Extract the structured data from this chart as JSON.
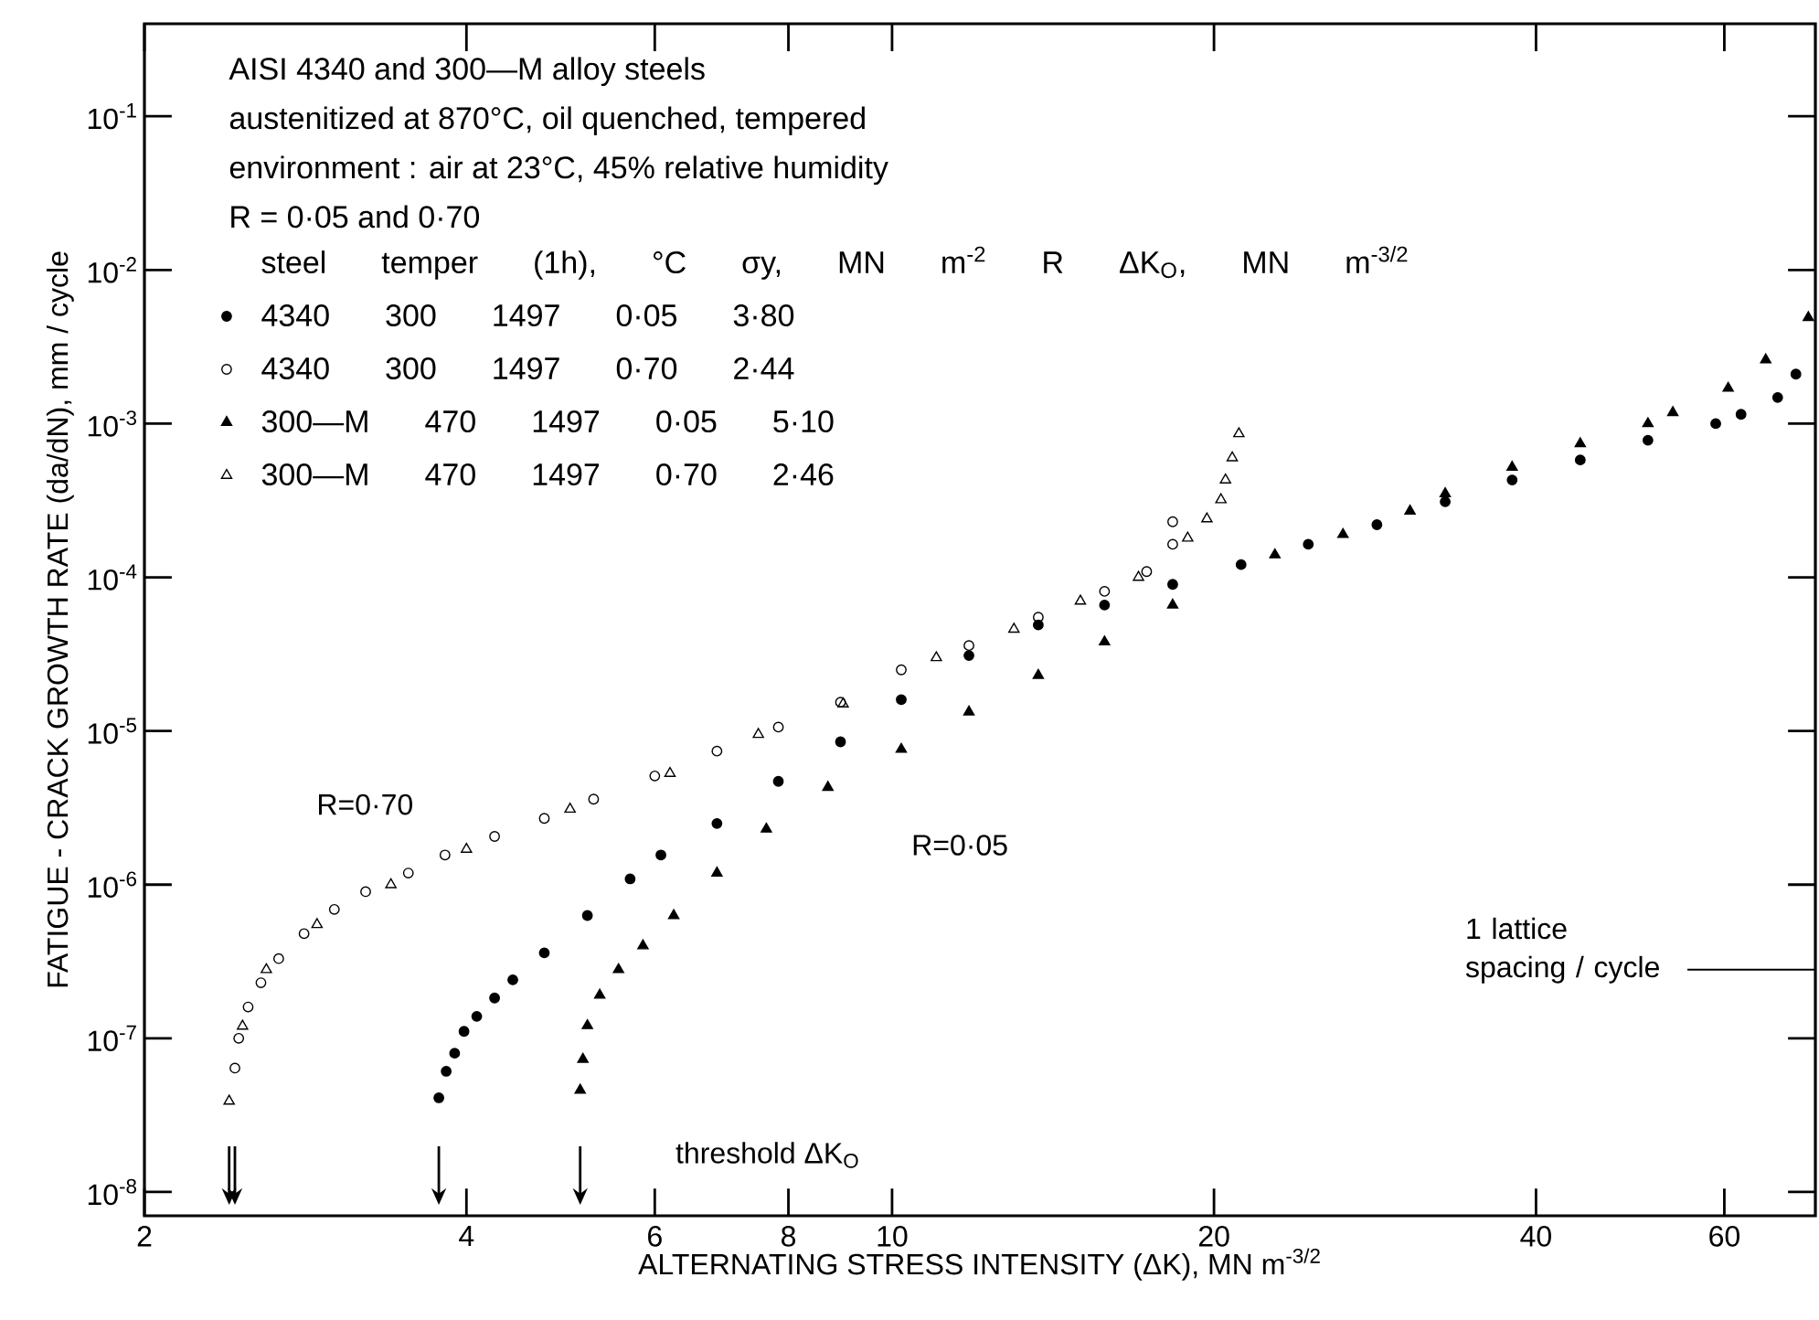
{
  "chart_data": {
    "type": "scatter",
    "xlabel": "ALTERNATING STRESS INTENSITY (ΔK), MN m$^{-3/2}$",
    "ylabel": "FATIGUE - CRACK GROWTH RATE (da/dN), mm / cycle",
    "log": "xy",
    "grid": false,
    "legend": "top left",
    "legend_title": "steel temper (1h), °C σy, MN m$^{-2}$ R ΔK$_{O}$, MN m$^{-3/2}$",
    "xlim": [
      2,
      73
    ],
    "ylim": [
      7e-09,
      0.4
    ],
    "xticks": [
      2,
      4,
      6,
      8,
      10,
      20,
      40,
      60
    ],
    "yticks": [
      {
        "value": 1e-08,
        "label": "10$^{-8}$"
      },
      {
        "value": 1e-07,
        "label": "10$^{-7}$"
      },
      {
        "value": 1e-06,
        "label": "10$^{-6}$"
      },
      {
        "value": 1e-05,
        "label": "10$^{-5}$"
      },
      {
        "value": 0.0001,
        "label": "10$^{-4}$"
      },
      {
        "value": 0.001,
        "label": "10$^{-3}$"
      },
      {
        "value": 0.01,
        "label": "10$^{-2}$"
      },
      {
        "value": 0.1,
        "label": "10$^{-1}$"
      }
    ],
    "series": [
      {
        "name": "4340 300 1497 0·05 3·80",
        "color": "#000000",
        "marker": "circle",
        "x": [
          3.77,
          3.83,
          3.9,
          3.98,
          4.09,
          4.25,
          4.42,
          4.73,
          5.19,
          5.69,
          6.08,
          6.86,
          7.83,
          8.95,
          10.2,
          11.8,
          13.7,
          15.8,
          18.3,
          21.2,
          24.5,
          28.4,
          32.9,
          38.0,
          44.0,
          50.9,
          58.9,
          62.2,
          67.3,
          70.0
        ],
        "values": [
          4.1e-08,
          6.1e-08,
          8e-08,
          1.11e-07,
          1.39e-07,
          1.83e-07,
          2.4e-07,
          3.6e-07,
          6.3e-07,
          1.09e-06,
          1.56e-06,
          2.5e-06,
          4.7e-06,
          8.5e-06,
          1.6e-05,
          3.1e-05,
          4.9e-05,
          6.6e-05,
          9e-05,
          0.000121,
          0.000164,
          0.00022,
          0.00031,
          0.00043,
          0.00058,
          0.00078,
          0.001,
          0.00115,
          0.00148,
          0.0021
        ]
      },
      {
        "name": "4340 300 1497 0·70 2·44",
        "color": "#000000",
        "marker": "circle",
        "x": [
          2.43,
          2.45,
          2.5,
          2.57,
          2.67,
          2.82,
          3.01,
          3.22,
          3.53,
          3.82,
          4.25,
          4.73,
          5.26,
          6.0,
          6.86,
          7.83,
          8.95,
          10.2,
          11.8,
          13.7,
          15.8,
          17.3,
          18.3,
          18.3
        ],
        "values": [
          6.4e-08,
          1e-07,
          1.6e-07,
          2.3e-07,
          3.3e-07,
          4.8e-07,
          6.9e-07,
          9e-07,
          1.19e-06,
          1.56e-06,
          2.06e-06,
          2.7e-06,
          3.6e-06,
          5.1e-06,
          7.4e-06,
          1.06e-05,
          1.54e-05,
          2.5e-05,
          3.6e-05,
          5.5e-05,
          8.1e-05,
          0.000109,
          0.000164,
          0.00023
        ]
      },
      {
        "name": "300—M 470 1497 0·05 5·10",
        "color": "#000000",
        "marker": "triangle",
        "x": [
          5.11,
          5.14,
          5.19,
          5.33,
          5.55,
          5.85,
          6.25,
          6.86,
          7.63,
          8.71,
          10.2,
          11.8,
          13.7,
          15.8,
          18.3,
          22.8,
          26.4,
          30.5,
          32.9,
          38.0,
          44.0,
          50.9,
          53.7,
          60.5,
          65.6,
          71.9
        ],
        "values": [
          4.6e-08,
          7.3e-08,
          1.21e-07,
          1.91e-07,
          2.8e-07,
          4e-07,
          6.3e-07,
          1.19e-06,
          2.3e-06,
          4.3e-06,
          7.6e-06,
          1.33e-05,
          2.3e-05,
          3.8e-05,
          6.6e-05,
          0.00014,
          0.00019,
          0.00027,
          0.00035,
          0.00052,
          0.00074,
          0.001,
          0.00118,
          0.0017,
          0.0026,
          0.0049
        ]
      },
      {
        "name": "300—M 470 1497 0·70 2·46",
        "color": "#000000",
        "marker": "triangle",
        "x": [
          2.4,
          2.47,
          2.6,
          2.9,
          3.4,
          4.0,
          5.0,
          6.2,
          7.5,
          9.0,
          11,
          13,
          15,
          17,
          18.9,
          19.7,
          20.3,
          20.5,
          20.8,
          21.1
        ],
        "values": [
          3.9e-08,
          1.2e-07,
          2.8e-07,
          5.5e-07,
          1e-06,
          1.7e-06,
          3.1e-06,
          5.3e-06,
          9.5e-06,
          1.5e-05,
          3e-05,
          4.6e-05,
          7e-05,
          0.0001,
          0.00018,
          0.00024,
          0.00032,
          0.00043,
          0.0006,
          0.00086
        ]
      }
    ],
    "annotations": [
      "AISI 4340 and 300—M alloy steels",
      "austenitized at 870°C, oil quenched, tempered",
      "environment : air at 23°C, 45% relative humidity",
      "R = 0·05 and 0·70",
      "R=0·70",
      "R=0·05",
      "threshold ΔK$_{O}$"
    ],
    "ref_lines": [
      {
        "axis": "y",
        "value": 2.8e-07,
        "label": "1 lattice spacing / cycle"
      }
    ]
  }
}
